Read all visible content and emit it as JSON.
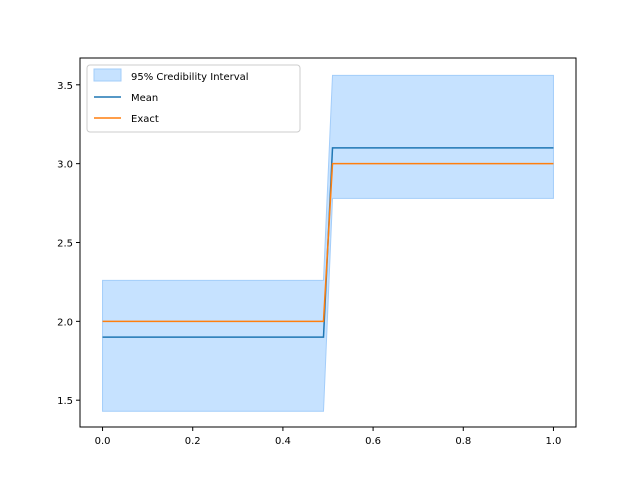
{
  "chart_data": {
    "type": "line",
    "title": "",
    "xlabel": "",
    "ylabel": "",
    "xlim": [
      -0.05,
      1.05
    ],
    "ylim": [
      1.33,
      3.67
    ],
    "x_ticks": [
      0.0,
      0.2,
      0.4,
      0.6,
      0.8,
      1.0
    ],
    "x_tick_labels": [
      "0.0",
      "0.2",
      "0.4",
      "0.6",
      "0.8",
      "1.0"
    ],
    "y_ticks": [
      1.5,
      2.0,
      2.5,
      3.0,
      3.5
    ],
    "y_tick_labels": [
      "1.5",
      "2.0",
      "2.5",
      "3.0",
      "3.5"
    ],
    "grid": false,
    "legend_position": "top-left",
    "x": [
      0.0,
      0.49,
      0.51,
      1.0
    ],
    "band": {
      "name": "95% Credibility Interval",
      "color": "#c6e2ff",
      "edge_color": "#a3cdfa",
      "lower": [
        1.43,
        1.43,
        2.78,
        2.78
      ],
      "upper": [
        2.26,
        2.26,
        3.56,
        3.56
      ]
    },
    "series": [
      {
        "name": "Mean",
        "color": "#1f77b4",
        "values": [
          1.9,
          1.9,
          3.1,
          3.1
        ]
      },
      {
        "name": "Exact",
        "color": "#ff7f0e",
        "values": [
          2.0,
          2.0,
          3.0,
          3.0
        ]
      }
    ]
  }
}
